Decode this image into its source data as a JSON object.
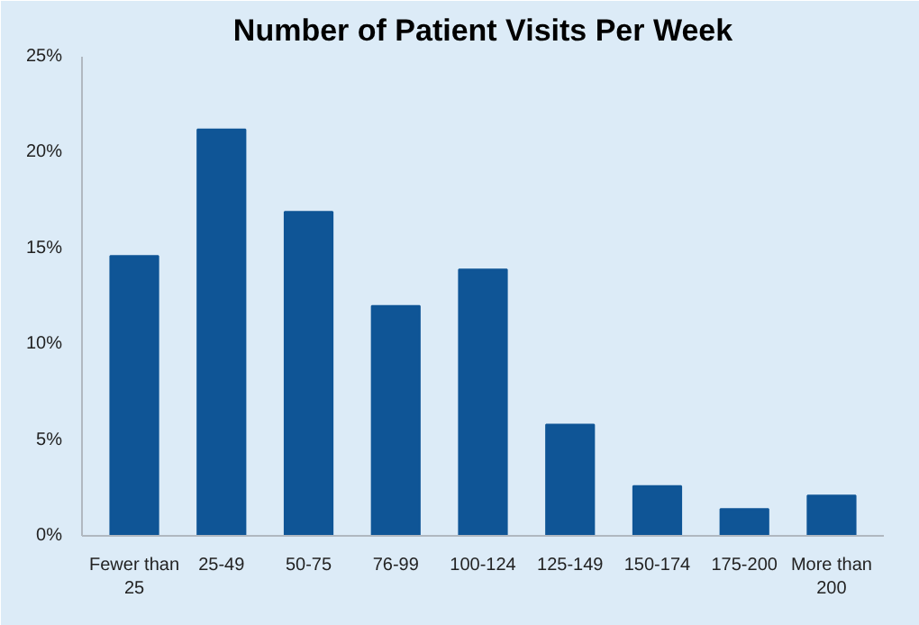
{
  "chart_data": {
    "type": "bar",
    "title": "Number of Patient Visits Per Week",
    "categories": [
      "Fewer than 25",
      "25-49",
      "50-75",
      "76-99",
      "100-124",
      "125-149",
      "150-174",
      "175-200",
      "More than 200"
    ],
    "values": [
      14.6,
      21.2,
      16.9,
      12.0,
      13.9,
      5.8,
      2.6,
      1.4,
      2.1
    ],
    "color": "#0f5596",
    "ylim": [
      0,
      25
    ],
    "yticks": [
      {
        "value": 0,
        "label": "0%"
      },
      {
        "value": 5,
        "label": "5%"
      },
      {
        "value": 10,
        "label": "10%"
      },
      {
        "value": 15,
        "label": "15%"
      },
      {
        "value": 20,
        "label": "20%"
      },
      {
        "value": 25,
        "label": "25%"
      }
    ],
    "grid": false
  }
}
